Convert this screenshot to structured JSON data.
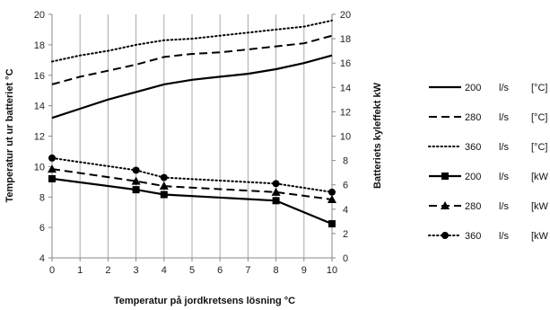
{
  "chart_data": {
    "type": "line",
    "title": "",
    "xlabel": "Temperatur på jordkretsens lösning °C",
    "ylabel": "Temperatur ut ur batteriet °C",
    "y2label": "Batteriets kyleffekt kW",
    "xlim": [
      0,
      10
    ],
    "ylim": [
      4,
      20
    ],
    "y2lim": [
      0,
      20
    ],
    "x_ticks": [
      "0",
      "1",
      "2",
      "3",
      "4",
      "5",
      "6",
      "7",
      "8",
      "9",
      "10"
    ],
    "y_ticks": [
      "4",
      "6",
      "8",
      "10",
      "12",
      "14",
      "16",
      "18",
      "20"
    ],
    "y2_ticks": [
      "0",
      "2",
      "4",
      "6",
      "8",
      "10",
      "12",
      "14",
      "16",
      "18",
      "20"
    ],
    "grid": {
      "vertical": true,
      "horizontal": false
    },
    "legend": "right",
    "series": [
      {
        "flow": "200",
        "unit_label": "l/s",
        "unit": "[°C]",
        "axis": "left",
        "style": "solid",
        "marker": "none",
        "x": [
          0,
          1,
          2,
          3,
          4,
          5,
          6,
          7,
          8,
          9,
          10
        ],
        "values": [
          13.2,
          13.8,
          14.4,
          14.9,
          15.4,
          15.7,
          15.9,
          16.1,
          16.4,
          16.8,
          17.3
        ]
      },
      {
        "flow": "280",
        "unit_label": "l/s",
        "unit": "[°C]",
        "axis": "left",
        "style": "dashed",
        "marker": "none",
        "x": [
          0,
          1,
          2,
          3,
          4,
          5,
          6,
          7,
          8,
          9,
          10
        ],
        "values": [
          15.4,
          15.9,
          16.3,
          16.7,
          17.2,
          17.4,
          17.5,
          17.7,
          17.9,
          18.1,
          18.6
        ]
      },
      {
        "flow": "360",
        "unit_label": "l/s",
        "unit": "[°C]",
        "axis": "left",
        "style": "dotted",
        "marker": "none",
        "x": [
          0,
          1,
          2,
          3,
          4,
          5,
          6,
          7,
          8,
          9,
          10
        ],
        "values": [
          16.9,
          17.3,
          17.6,
          18.0,
          18.3,
          18.4,
          18.6,
          18.8,
          19.0,
          19.2,
          19.6
        ]
      },
      {
        "flow": "200",
        "unit_label": "l/s",
        "unit": "[kW",
        "axis": "right",
        "style": "solid",
        "marker": "square",
        "x": [
          0,
          3,
          4,
          8,
          10
        ],
        "values": [
          6.5,
          5.6,
          5.2,
          4.7,
          2.8
        ]
      },
      {
        "flow": "280",
        "unit_label": "l/s",
        "unit": "[kW",
        "axis": "right",
        "style": "dashed",
        "marker": "triangle",
        "x": [
          0,
          3,
          4,
          8,
          10
        ],
        "values": [
          7.3,
          6.3,
          5.9,
          5.4,
          4.8
        ]
      },
      {
        "flow": "360",
        "unit_label": "l/s",
        "unit": "[kW",
        "axis": "right",
        "style": "dotted",
        "marker": "circle",
        "x": [
          0,
          3,
          4,
          8,
          10
        ],
        "values": [
          8.2,
          7.2,
          6.6,
          6.1,
          5.4
        ]
      }
    ]
  }
}
